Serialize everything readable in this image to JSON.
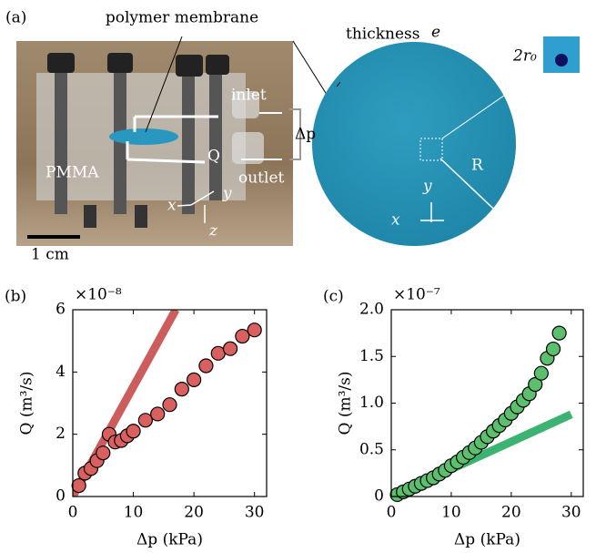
{
  "panel_a": {
    "label": "(a)",
    "membrane": "polymer membrane",
    "thickness": "thickness",
    "thickness_symbol": "e",
    "hole": "2r₀",
    "inlet": "inlet",
    "outlet": "outlet",
    "pressure": "Δp",
    "flow": "Q",
    "material": "PMMA",
    "scale": "1 cm",
    "axis_x": "x",
    "axis_y": "y",
    "axis_z": "z",
    "radius": "R",
    "disk_axis_x": "x",
    "disk_axis_y": "y"
  },
  "chart_data": [
    {
      "type": "scatter",
      "panel_label": "(b)",
      "multiplier": "×10⁻⁸",
      "xlabel": "Δp (kPa)",
      "ylabel": "Q (m³/s)",
      "xlim": [
        0,
        32
      ],
      "ylim": [
        0,
        6
      ],
      "xticks": [
        0,
        10,
        20,
        30
      ],
      "yticks": [
        0,
        2,
        4,
        6
      ],
      "series": [
        {
          "kind": "line",
          "color": "#cd5c5c",
          "x": [
            0,
            17
          ],
          "values": [
            0,
            6
          ]
        },
        {
          "kind": "points",
          "color": "#d9605e",
          "x": [
            1,
            2,
            3,
            4,
            5,
            6,
            7,
            8,
            9,
            10,
            12,
            14,
            16,
            18,
            20,
            22,
            24,
            26,
            28,
            30
          ],
          "values": [
            0.35,
            0.75,
            0.9,
            1.15,
            1.4,
            2.0,
            1.75,
            1.8,
            1.95,
            2.1,
            2.45,
            2.65,
            2.95,
            3.45,
            3.75,
            4.2,
            4.6,
            4.75,
            5.15,
            5.35
          ]
        }
      ]
    },
    {
      "type": "scatter",
      "panel_label": "(c)",
      "multiplier": "×10⁻⁷",
      "xlabel": "Δp (kPa)",
      "ylabel": "Q (m³/s)",
      "xlim": [
        0,
        32
      ],
      "ylim": [
        0,
        2
      ],
      "xticks": [
        0,
        10,
        20,
        30
      ],
      "yticks": [
        0,
        0.5,
        {
          "value": 1,
          "label": "1.0"
        },
        1.5,
        {
          "value": 2,
          "label": "2.0"
        }
      ],
      "series": [
        {
          "kind": "line",
          "color": "#3cb371",
          "x": [
            0,
            30
          ],
          "values": [
            0,
            0.88
          ]
        },
        {
          "kind": "points",
          "color": "#5cbf6e",
          "x": [
            1,
            2,
            3,
            4,
            5,
            6,
            7,
            8,
            9,
            10,
            11,
            12,
            13,
            14,
            15,
            16,
            17,
            18,
            19,
            20,
            21,
            22,
            23,
            24,
            25,
            26,
            27,
            28
          ],
          "values": [
            0.02,
            0.05,
            0.08,
            0.11,
            0.14,
            0.17,
            0.2,
            0.24,
            0.28,
            0.33,
            0.37,
            0.42,
            0.47,
            0.52,
            0.58,
            0.64,
            0.7,
            0.76,
            0.82,
            0.89,
            0.96,
            1.03,
            1.1,
            1.2,
            1.32,
            1.48,
            1.58,
            1.75
          ]
        }
      ]
    }
  ]
}
